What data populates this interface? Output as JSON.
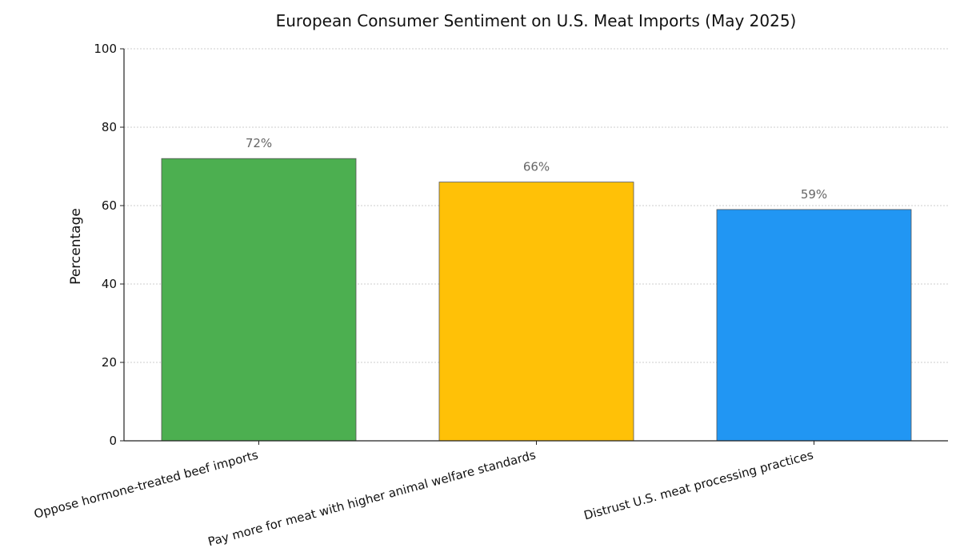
{
  "chart_data": {
    "type": "bar",
    "title": "European Consumer Sentiment on U.S. Meat Imports (May 2025)",
    "xlabel": "",
    "ylabel": "Percentage",
    "ylim": [
      0,
      100
    ],
    "yticks": [
      0,
      20,
      40,
      60,
      80,
      100
    ],
    "grid": true,
    "categories": [
      "Oppose hormone-treated beef imports",
      "Pay more for meat with higher animal welfare standards",
      "Distrust U.S. meat processing practices"
    ],
    "values": [
      72,
      66,
      59
    ],
    "data_labels": [
      "72%",
      "66%",
      "59%"
    ],
    "colors": [
      "#4caf50",
      "#ffc107",
      "#2196f3"
    ]
  }
}
